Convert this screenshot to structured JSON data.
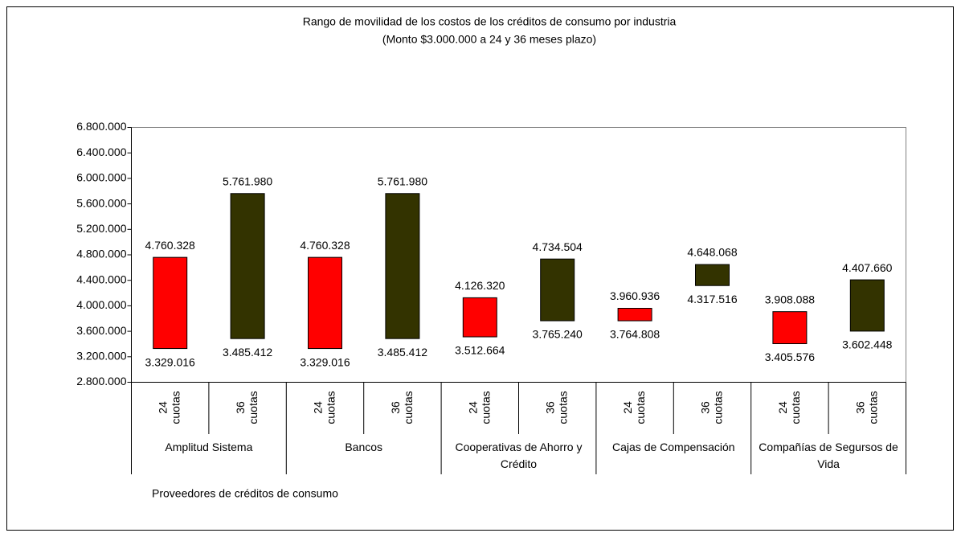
{
  "chart_data": {
    "type": "range_bar",
    "title": "Rango de movilidad de los costos de los créditos de consumo por industria",
    "subtitle": "(Monto $3.000.000 a 24 y 36 meses plazo)",
    "x_label": "Proveedores de créditos de consumo",
    "groups": [
      "Amplitud Sistema",
      "Bancos",
      "Cooperativas de Ahorro y Crédito",
      "Cajas de Compensación",
      "Compañías de Segursos de Vida"
    ],
    "categories": [
      "24 cuotas",
      "36 cuotas",
      "24 cuotas",
      "36 cuotas",
      "24 cuotas",
      "36 cuotas",
      "24 cuotas",
      "36 cuotas",
      "24 cuotas",
      "36 cuotas"
    ],
    "low": [
      3329016,
      3485412,
      3329016,
      3485412,
      3512664,
      3765240,
      3764808,
      4317516,
      3405576,
      3602448
    ],
    "high": [
      4760328,
      5761980,
      4760328,
      5761980,
      4126320,
      4734504,
      3960936,
      4648068,
      3908088,
      4407660
    ],
    "low_labels": [
      "3.329.016",
      "3.485.412",
      "3.329.016",
      "3.485.412",
      "3.512.664",
      "3.765.240",
      "3.764.808",
      "4.317.516",
      "3.405.576",
      "3.602.448"
    ],
    "high_labels": [
      "4.760.328",
      "5.761.980",
      "4.760.328",
      "5.761.980",
      "4.126.320",
      "4.734.504",
      "3.960.936",
      "4.648.068",
      "3.908.088",
      "4.407.660"
    ],
    "colors": [
      "#ff0000",
      "#333300"
    ],
    "ylim": [
      2800000,
      6800000
    ],
    "yticks": [
      {
        "value": 2800000,
        "label": "2.800.000"
      },
      {
        "value": 3200000,
        "label": "3.200.000"
      },
      {
        "value": 3600000,
        "label": "3.600.000"
      },
      {
        "value": 4000000,
        "label": "4.000.000"
      },
      {
        "value": 4400000,
        "label": "4.400.000"
      },
      {
        "value": 4800000,
        "label": "4.800.000"
      },
      {
        "value": 5200000,
        "label": "5.200.000"
      },
      {
        "value": 5600000,
        "label": "5.600.000"
      },
      {
        "value": 6000000,
        "label": "6.000.000"
      },
      {
        "value": 6400000,
        "label": "6.400.000"
      },
      {
        "value": 6800000,
        "label": "6.800.000"
      }
    ],
    "grid": false
  }
}
